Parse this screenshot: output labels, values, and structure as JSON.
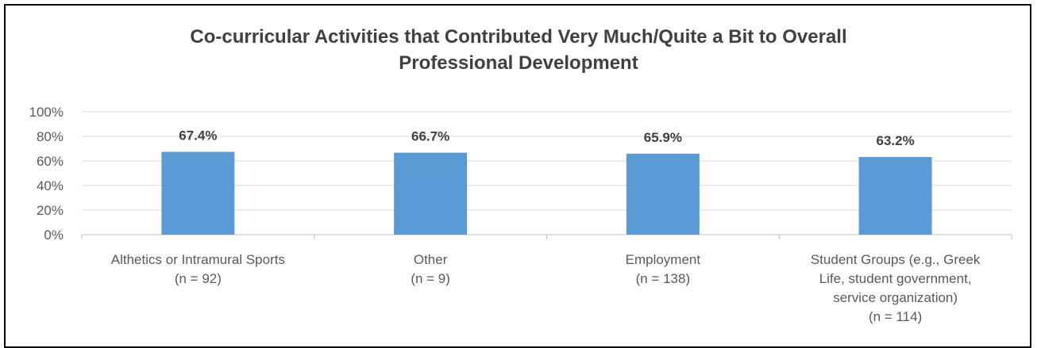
{
  "chart_data": {
    "type": "bar",
    "title_lines": [
      "Co-curricular Activities that Contributed Very Much/Quite a Bit to Overall",
      "Professional Development"
    ],
    "categories": [
      [
        "Althetics or Intramural Sports",
        "(n = 92)"
      ],
      [
        "Other",
        "(n = 9)"
      ],
      [
        "Employment",
        "(n = 138)"
      ],
      [
        "Student Groups (e.g., Greek",
        "Life, student government,",
        "service organization)",
        "(n = 114)"
      ]
    ],
    "values": [
      67.4,
      66.7,
      65.9,
      63.2
    ],
    "data_labels": [
      "67.4%",
      "66.7%",
      "65.9%",
      "63.2%"
    ],
    "yticks": [
      0,
      20,
      40,
      60,
      80,
      100
    ],
    "ytick_labels": [
      "0%",
      "20%",
      "40%",
      "60%",
      "80%",
      "100%"
    ],
    "ylim": [
      0,
      100
    ],
    "grid": true,
    "bar_color": "#5b9bd5"
  }
}
